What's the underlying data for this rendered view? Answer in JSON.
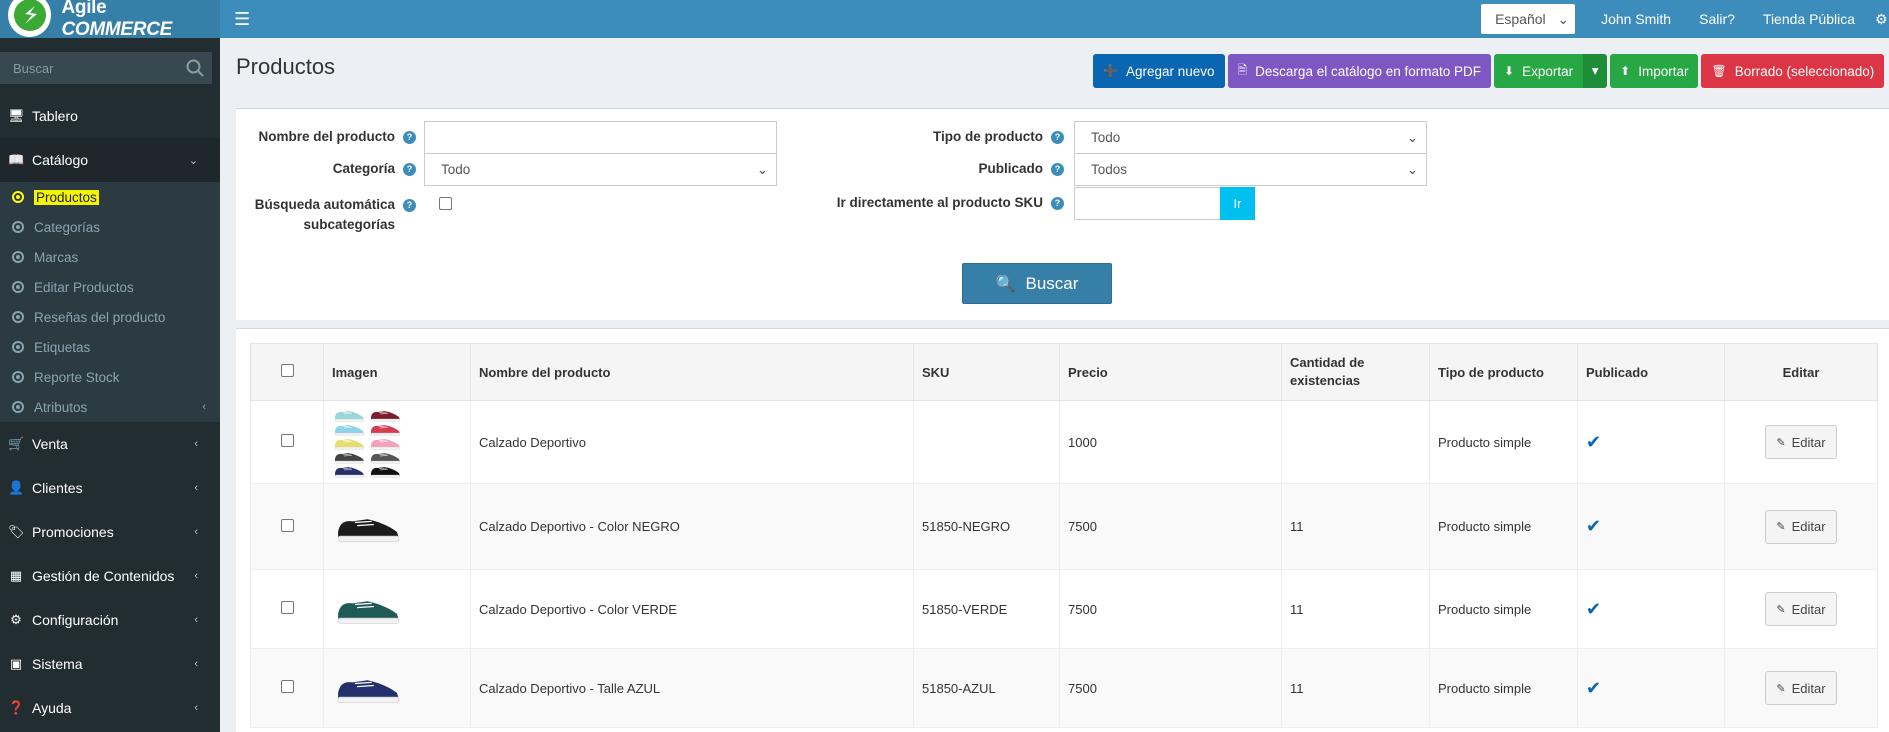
{
  "app": {
    "brand_plain": "Agile",
    "brand_italic": "COMMERCE",
    "language": "Español",
    "user": "John Smith",
    "logout": "Salir?",
    "public_store": "Tienda Pública"
  },
  "sidebar": {
    "search_placeholder": "Buscar",
    "items": [
      {
        "label": "Tablero",
        "icon": "monitor-icon"
      },
      {
        "label": "Catálogo",
        "icon": "book-icon"
      },
      {
        "label": "Venta",
        "icon": "cart-icon"
      },
      {
        "label": "Clientes",
        "icon": "user-icon"
      },
      {
        "label": "Promociones",
        "icon": "tags-icon"
      },
      {
        "label": "Gestión de Contenidos",
        "icon": "cubes-icon"
      },
      {
        "label": "Configuración",
        "icon": "gears-icon"
      },
      {
        "label": "Sistema",
        "icon": "cube-icon"
      },
      {
        "label": "Ayuda",
        "icon": "question-icon"
      }
    ],
    "catalog_sub": [
      {
        "label": "Productos"
      },
      {
        "label": "Categorías"
      },
      {
        "label": "Marcas"
      },
      {
        "label": "Editar Productos"
      },
      {
        "label": "Reseñas del producto"
      },
      {
        "label": "Etiquetas"
      },
      {
        "label": "Reporte Stock"
      },
      {
        "label": "Atributos"
      }
    ]
  },
  "page": {
    "title": "Productos",
    "actions": {
      "add_new": "Agregar nuevo",
      "download_pdf": "Descarga el catálogo en formato PDF",
      "export": "Exportar",
      "import": "Importar",
      "delete_selected": "Borrado (seleccionado)"
    }
  },
  "filters": {
    "product_name_label": "Nombre del producto",
    "product_name_value": "",
    "category_label": "Categoría",
    "category_value": "Todo",
    "auto_search_label_1": "Búsqueda automática",
    "auto_search_label_2": "subcategorías",
    "product_type_label": "Tipo de producto",
    "product_type_value": "Todo",
    "published_label": "Publicado",
    "published_value": "Todos",
    "goto_sku_label": "Ir directamente al producto SKU",
    "goto_sku_value": "",
    "goto_button": "Ir",
    "search_button": "Buscar"
  },
  "table": {
    "headers": {
      "image": "Imagen",
      "name": "Nombre del producto",
      "sku": "SKU",
      "price": "Precio",
      "stock": "Cantidad de existencias",
      "type": "Tipo de producto",
      "published": "Publicado",
      "edit": "Editar"
    },
    "edit_label": "Editar",
    "rows": [
      {
        "name": "Calzado Deportivo",
        "sku": "",
        "price": "1000",
        "stock": "",
        "type": "Producto simple",
        "published": true,
        "color": "multi"
      },
      {
        "name": "Calzado Deportivo - Color NEGRO",
        "sku": "51850-NEGRO",
        "price": "7500",
        "stock": "11",
        "type": "Producto simple",
        "published": true,
        "color": "#1b1b1b"
      },
      {
        "name": "Calzado Deportivo - Color VERDE",
        "sku": "51850-VERDE",
        "price": "7500",
        "stock": "11",
        "type": "Producto simple",
        "published": true,
        "color": "#1f5a57"
      },
      {
        "name": "Calzado Deportivo - Talle AZUL",
        "sku": "51850-AZUL",
        "price": "7500",
        "stock": "11",
        "type": "Producto simple",
        "published": true,
        "color": "#23306b"
      }
    ]
  },
  "colors": {
    "topbar": "#3c8dbc",
    "sidebar": "#222d32",
    "accent_blue": "#0a66b0",
    "purple": "#7e57c2",
    "green": "#28a745",
    "red": "#dc3545",
    "cyan": "#00c0ef"
  }
}
